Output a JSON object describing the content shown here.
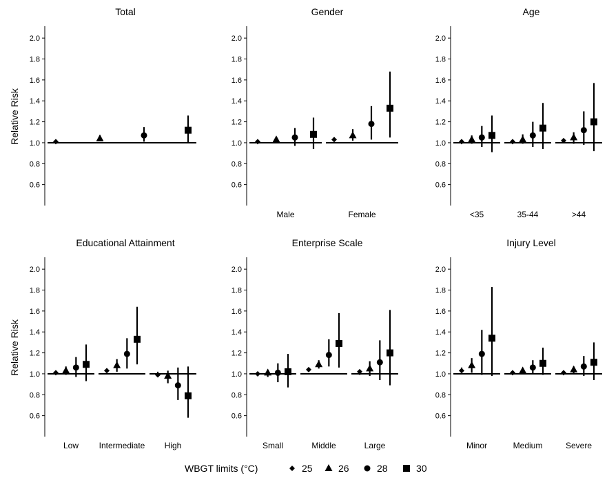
{
  "legend": {
    "title": "WBGT limits (°C)",
    "items": [
      {
        "label": "25",
        "marker": "diamond"
      },
      {
        "label": "26",
        "marker": "triangle"
      },
      {
        "label": "28",
        "marker": "circle"
      },
      {
        "label": "30",
        "marker": "square"
      }
    ]
  },
  "chart_data": [
    {
      "type": "scatter",
      "title": "Total",
      "ylabel": "Relative Risk",
      "ylim": [
        0.4,
        2.1
      ],
      "yticks": [
        0.6,
        0.8,
        1.0,
        1.2,
        1.4,
        1.6,
        1.8,
        2.0
      ],
      "reference_line": 1.0,
      "categories": [
        ""
      ],
      "series": [
        {
          "name": "25",
          "values": [
            1.01
          ],
          "ci": [
            [
              1.0,
              1.03
            ]
          ]
        },
        {
          "name": "26",
          "values": [
            1.04
          ],
          "ci": [
            [
              1.02,
              1.07
            ]
          ]
        },
        {
          "name": "28",
          "values": [
            1.07
          ],
          "ci": [
            [
              1.01,
              1.15
            ]
          ]
        },
        {
          "name": "30",
          "values": [
            1.12
          ],
          "ci": [
            [
              1.0,
              1.26
            ]
          ]
        }
      ]
    },
    {
      "type": "scatter",
      "title": "Gender",
      "ylabel": "",
      "ylim": [
        0.4,
        2.1
      ],
      "yticks": [
        0.6,
        0.8,
        1.0,
        1.2,
        1.4,
        1.6,
        1.8,
        2.0
      ],
      "reference_line": 1.0,
      "categories": [
        "Male",
        "Female"
      ],
      "series": [
        {
          "name": "25",
          "values": [
            1.01,
            1.03
          ],
          "ci": [
            [
              1.0,
              1.02
            ],
            [
              1.01,
              1.05
            ]
          ]
        },
        {
          "name": "26",
          "values": [
            1.03,
            1.07
          ],
          "ci": [
            [
              1.0,
              1.05
            ],
            [
              1.02,
              1.13
            ]
          ]
        },
        {
          "name": "28",
          "values": [
            1.05,
            1.18
          ],
          "ci": [
            [
              0.97,
              1.14
            ],
            [
              1.03,
              1.35
            ]
          ]
        },
        {
          "name": "30",
          "values": [
            1.08,
            1.33
          ],
          "ci": [
            [
              0.94,
              1.24
            ],
            [
              1.05,
              1.68
            ]
          ]
        }
      ]
    },
    {
      "type": "scatter",
      "title": "Age",
      "ylabel": "",
      "ylim": [
        0.4,
        2.1
      ],
      "yticks": [
        0.6,
        0.8,
        1.0,
        1.2,
        1.4,
        1.6,
        1.8,
        2.0
      ],
      "reference_line": 1.0,
      "categories": [
        "<35",
        "35-44",
        ">44"
      ],
      "series": [
        {
          "name": "25",
          "values": [
            1.01,
            1.01,
            1.02
          ],
          "ci": [
            [
              1.0,
              1.03
            ],
            [
              0.99,
              1.03
            ],
            [
              1.0,
              1.04
            ]
          ]
        },
        {
          "name": "26",
          "values": [
            1.03,
            1.03,
            1.05
          ],
          "ci": [
            [
              0.99,
              1.07
            ],
            [
              0.99,
              1.08
            ],
            [
              0.99,
              1.1
            ]
          ]
        },
        {
          "name": "28",
          "values": [
            1.05,
            1.07,
            1.12
          ],
          "ci": [
            [
              0.96,
              1.16
            ],
            [
              0.96,
              1.2
            ],
            [
              0.98,
              1.3
            ]
          ]
        },
        {
          "name": "30",
          "values": [
            1.07,
            1.14,
            1.2
          ],
          "ci": [
            [
              0.91,
              1.26
            ],
            [
              0.94,
              1.38
            ],
            [
              0.92,
              1.57
            ]
          ]
        }
      ]
    },
    {
      "type": "scatter",
      "title": "Educational Attainment",
      "ylabel": "Relative Risk",
      "ylim": [
        0.4,
        2.1
      ],
      "yticks": [
        0.6,
        0.8,
        1.0,
        1.2,
        1.4,
        1.6,
        1.8,
        2.0
      ],
      "reference_line": 1.0,
      "categories": [
        "Low",
        "Intermediate",
        "High"
      ],
      "series": [
        {
          "name": "25",
          "values": [
            1.01,
            1.03,
            0.99
          ],
          "ci": [
            [
              0.99,
              1.03
            ],
            [
              1.01,
              1.05
            ],
            [
              0.97,
              1.02
            ]
          ]
        },
        {
          "name": "26",
          "values": [
            1.03,
            1.08,
            0.98
          ],
          "ci": [
            [
              0.99,
              1.07
            ],
            [
              1.02,
              1.14
            ],
            [
              0.91,
              1.03
            ]
          ]
        },
        {
          "name": "28",
          "values": [
            1.06,
            1.19,
            0.89
          ],
          "ci": [
            [
              0.97,
              1.16
            ],
            [
              1.05,
              1.34
            ],
            [
              0.75,
              1.06
            ]
          ]
        },
        {
          "name": "30",
          "values": [
            1.09,
            1.33,
            0.79
          ],
          "ci": [
            [
              0.93,
              1.28
            ],
            [
              1.09,
              1.64
            ],
            [
              0.58,
              1.07
            ]
          ]
        }
      ]
    },
    {
      "type": "scatter",
      "title": "Enterprise Scale",
      "ylabel": "",
      "ylim": [
        0.4,
        2.1
      ],
      "yticks": [
        0.6,
        0.8,
        1.0,
        1.2,
        1.4,
        1.6,
        1.8,
        2.0
      ],
      "reference_line": 1.0,
      "categories": [
        "Small",
        "Middle",
        "Large"
      ],
      "series": [
        {
          "name": "25",
          "values": [
            1.0,
            1.04,
            1.02
          ],
          "ci": [
            [
              0.98,
              1.02
            ],
            [
              1.02,
              1.06
            ],
            [
              0.99,
              1.04
            ]
          ]
        },
        {
          "name": "26",
          "values": [
            1.01,
            1.09,
            1.05
          ],
          "ci": [
            [
              0.97,
              1.04
            ],
            [
              1.05,
              1.13
            ],
            [
              0.98,
              1.12
            ]
          ]
        },
        {
          "name": "28",
          "values": [
            1.01,
            1.18,
            1.11
          ],
          "ci": [
            [
              0.92,
              1.1
            ],
            [
              1.07,
              1.33
            ],
            [
              0.94,
              1.32
            ]
          ]
        },
        {
          "name": "30",
          "values": [
            1.02,
            1.29,
            1.2
          ],
          "ci": [
            [
              0.87,
              1.19
            ],
            [
              1.06,
              1.58
            ],
            [
              0.89,
              1.61
            ]
          ]
        }
      ]
    },
    {
      "type": "scatter",
      "title": "Injury Level",
      "ylabel": "",
      "ylim": [
        0.4,
        2.1
      ],
      "yticks": [
        0.6,
        0.8,
        1.0,
        1.2,
        1.4,
        1.6,
        1.8,
        2.0
      ],
      "reference_line": 1.0,
      "categories": [
        "Minor",
        "Medium",
        "Severe"
      ],
      "series": [
        {
          "name": "25",
          "values": [
            1.03,
            1.01,
            1.01
          ],
          "ci": [
            [
              1.01,
              1.06
            ],
            [
              1.0,
              1.02
            ],
            [
              1.0,
              1.03
            ]
          ]
        },
        {
          "name": "26",
          "values": [
            1.08,
            1.03,
            1.04
          ],
          "ci": [
            [
              1.01,
              1.15
            ],
            [
              1.01,
              1.05
            ],
            [
              1.0,
              1.07
            ]
          ]
        },
        {
          "name": "28",
          "values": [
            1.19,
            1.06,
            1.07
          ],
          "ci": [
            [
              0.99,
              1.42
            ],
            [
              1.0,
              1.13
            ],
            [
              0.98,
              1.17
            ]
          ]
        },
        {
          "name": "30",
          "values": [
            1.34,
            1.1,
            1.11
          ],
          "ci": [
            [
              0.98,
              1.83
            ],
            [
              0.99,
              1.25
            ],
            [
              0.94,
              1.3
            ]
          ]
        }
      ]
    }
  ]
}
